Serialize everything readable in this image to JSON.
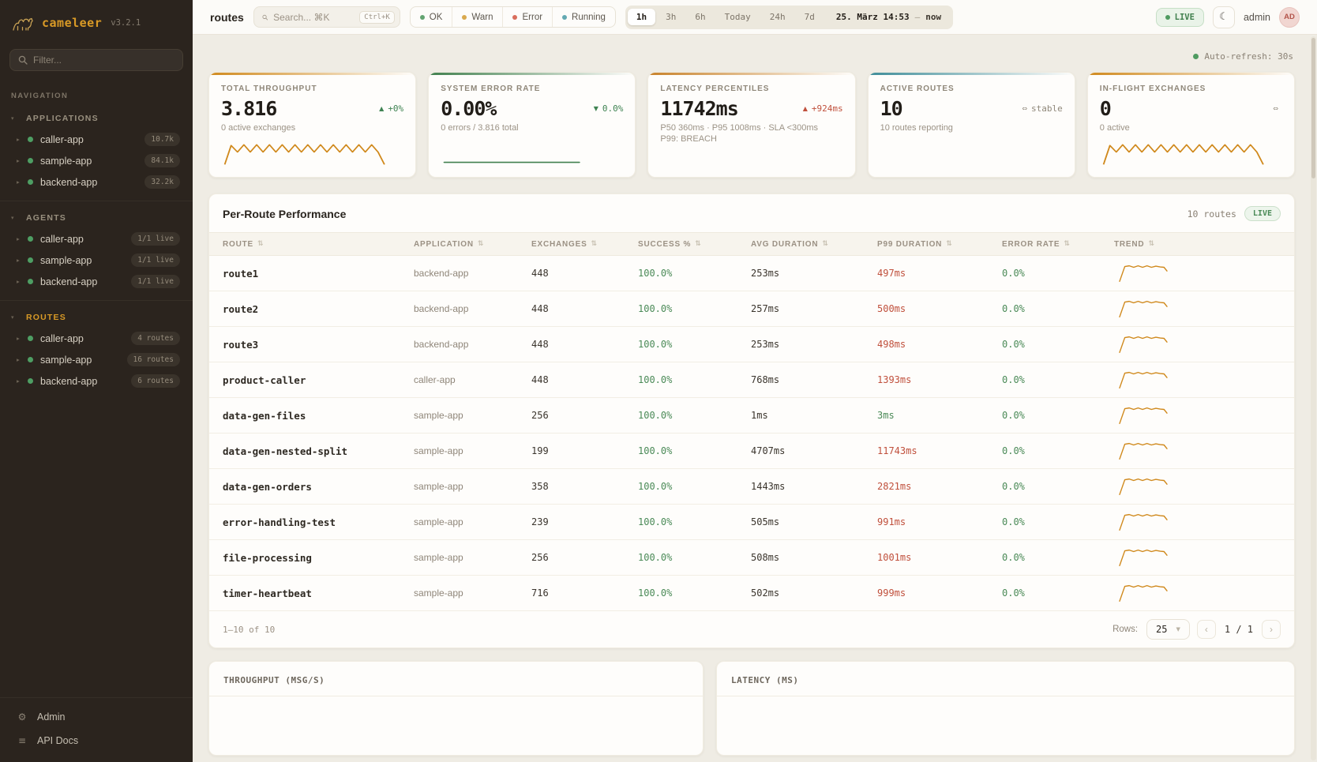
{
  "icons": {
    "sort": "⇅",
    "group_caret": "▾",
    "item_caret": "▸",
    "moon": "☾",
    "gear": "⚙",
    "docs": "≡",
    "prev": "‹",
    "next": "›",
    "select_caret": "▼"
  },
  "sidebar": {
    "brand": "cameleer",
    "version": "v3.2.1",
    "filter_placeholder": "Filter...",
    "nav_label": "NAVIGATION",
    "groups": [
      {
        "label": "APPLICATIONS",
        "active": false,
        "items": [
          {
            "label": "caller-app",
            "badge": "10.7k"
          },
          {
            "label": "sample-app",
            "badge": "84.1k"
          },
          {
            "label": "backend-app",
            "badge": "32.2k"
          }
        ]
      },
      {
        "label": "AGENTS",
        "active": false,
        "items": [
          {
            "label": "caller-app",
            "badge": "1/1 live"
          },
          {
            "label": "sample-app",
            "badge": "1/1 live"
          },
          {
            "label": "backend-app",
            "badge": "1/1 live"
          }
        ]
      },
      {
        "label": "ROUTES",
        "active": true,
        "items": [
          {
            "label": "caller-app",
            "badge": "4 routes"
          },
          {
            "label": "sample-app",
            "badge": "16 routes"
          },
          {
            "label": "backend-app",
            "badge": "6 routes"
          }
        ]
      }
    ],
    "footer_items": [
      {
        "label": "Admin",
        "icon": "gear"
      },
      {
        "label": "API Docs",
        "icon": "docs"
      }
    ]
  },
  "topbar": {
    "page_title": "routes",
    "search_placeholder": "Search... ⌘K",
    "search_shortcut": "Ctrl+K",
    "status_filters": [
      {
        "label": "OK",
        "color": "#63a471"
      },
      {
        "label": "Warn",
        "color": "#d9a94e"
      },
      {
        "label": "Error",
        "color": "#d96d5c"
      },
      {
        "label": "Running",
        "color": "#63a9b2"
      }
    ],
    "time_ranges": [
      "1h",
      "3h",
      "6h",
      "Today",
      "24h",
      "7d"
    ],
    "active_range": "1h",
    "date_start": "25. März 14:53",
    "date_separator": "—",
    "date_end": "now",
    "live_label": "LIVE",
    "user_name": "admin",
    "avatar_initials": "AD"
  },
  "main": {
    "auto_refresh": "Auto-refresh: 30s",
    "kpis": [
      {
        "label": "TOTAL THROUGHPUT",
        "value": "3.816",
        "delta_icon": "▲",
        "delta_text": "+0%",
        "delta_color": "green",
        "sub": "0 active exchanges",
        "spark": "zigzag",
        "accent": "#d08a1e"
      },
      {
        "label": "SYSTEM ERROR RATE",
        "value": "0.00%",
        "delta_icon": "▼",
        "delta_text": "0.0%",
        "delta_color": "green",
        "sub": "0 errors / 3.816 total",
        "spark": "flat",
        "accent": "#41804e"
      },
      {
        "label": "LATENCY PERCENTILES",
        "value": "11742ms",
        "delta_icon": "▲",
        "delta_text": "+924ms",
        "delta_color": "red",
        "sub": "P50 360ms · P95 1008ms · SLA <300ms",
        "sub2": "P99: BREACH",
        "spark": "none",
        "accent": "#c8822a"
      },
      {
        "label": "ACTIVE ROUTES",
        "value": "10",
        "delta_icon": "⇔",
        "delta_text": "stable",
        "delta_color": "gray",
        "sub": "10 routes reporting",
        "spark": "none",
        "accent": "#3f8d99"
      },
      {
        "label": "IN-FLIGHT EXCHANGES",
        "value": "0",
        "delta_icon": "⇔",
        "delta_text": "",
        "delta_color": "gray",
        "sub": "0 active",
        "spark": "zigzag",
        "accent": "#d08a1e"
      }
    ],
    "table": {
      "title": "Per-Route Performance",
      "count_label": "10 routes",
      "live_label": "LIVE",
      "columns": [
        "ROUTE",
        "APPLICATION",
        "EXCHANGES",
        "SUCCESS %",
        "AVG DURATION",
        "P99 DURATION",
        "ERROR RATE",
        "TREND"
      ],
      "rows": [
        {
          "route": "route1",
          "app": "backend-app",
          "exchanges": "448",
          "success": "100.0%",
          "avg": "253ms",
          "p99": "497ms",
          "p99_status": "bad",
          "error": "0.0%"
        },
        {
          "route": "route2",
          "app": "backend-app",
          "exchanges": "448",
          "success": "100.0%",
          "avg": "257ms",
          "p99": "500ms",
          "p99_status": "bad",
          "error": "0.0%"
        },
        {
          "route": "route3",
          "app": "backend-app",
          "exchanges": "448",
          "success": "100.0%",
          "avg": "253ms",
          "p99": "498ms",
          "p99_status": "bad",
          "error": "0.0%"
        },
        {
          "route": "product-caller",
          "app": "caller-app",
          "exchanges": "448",
          "success": "100.0%",
          "avg": "768ms",
          "p99": "1393ms",
          "p99_status": "bad",
          "error": "0.0%"
        },
        {
          "route": "data-gen-files",
          "app": "sample-app",
          "exchanges": "256",
          "success": "100.0%",
          "avg": "1ms",
          "p99": "3ms",
          "p99_status": "ok",
          "error": "0.0%"
        },
        {
          "route": "data-gen-nested-split",
          "app": "sample-app",
          "exchanges": "199",
          "success": "100.0%",
          "avg": "4707ms",
          "p99": "11743ms",
          "p99_status": "bad",
          "error": "0.0%"
        },
        {
          "route": "data-gen-orders",
          "app": "sample-app",
          "exchanges": "358",
          "success": "100.0%",
          "avg": "1443ms",
          "p99": "2821ms",
          "p99_status": "bad",
          "error": "0.0%"
        },
        {
          "route": "error-handling-test",
          "app": "sample-app",
          "exchanges": "239",
          "success": "100.0%",
          "avg": "505ms",
          "p99": "991ms",
          "p99_status": "bad",
          "error": "0.0%"
        },
        {
          "route": "file-processing",
          "app": "sample-app",
          "exchanges": "256",
          "success": "100.0%",
          "avg": "508ms",
          "p99": "1001ms",
          "p99_status": "bad",
          "error": "0.0%"
        },
        {
          "route": "timer-heartbeat",
          "app": "sample-app",
          "exchanges": "716",
          "success": "100.0%",
          "avg": "502ms",
          "p99": "999ms",
          "p99_status": "bad",
          "error": "0.0%"
        }
      ],
      "footer": {
        "range_label": "1–10 of 10",
        "rows_label": "Rows:",
        "rows_value": "25",
        "page_label": "1 / 1"
      }
    },
    "charts": [
      {
        "title": "THROUGHPUT (MSG/S)"
      },
      {
        "title": "LATENCY (MS)"
      }
    ]
  },
  "colors": {
    "sparkline_orange": "#d0891c",
    "sparkline_green": "#41804e",
    "sidebar_accent": "#d99a26",
    "success_green": "#4a8a57",
    "breach_red": "#c0503c"
  }
}
